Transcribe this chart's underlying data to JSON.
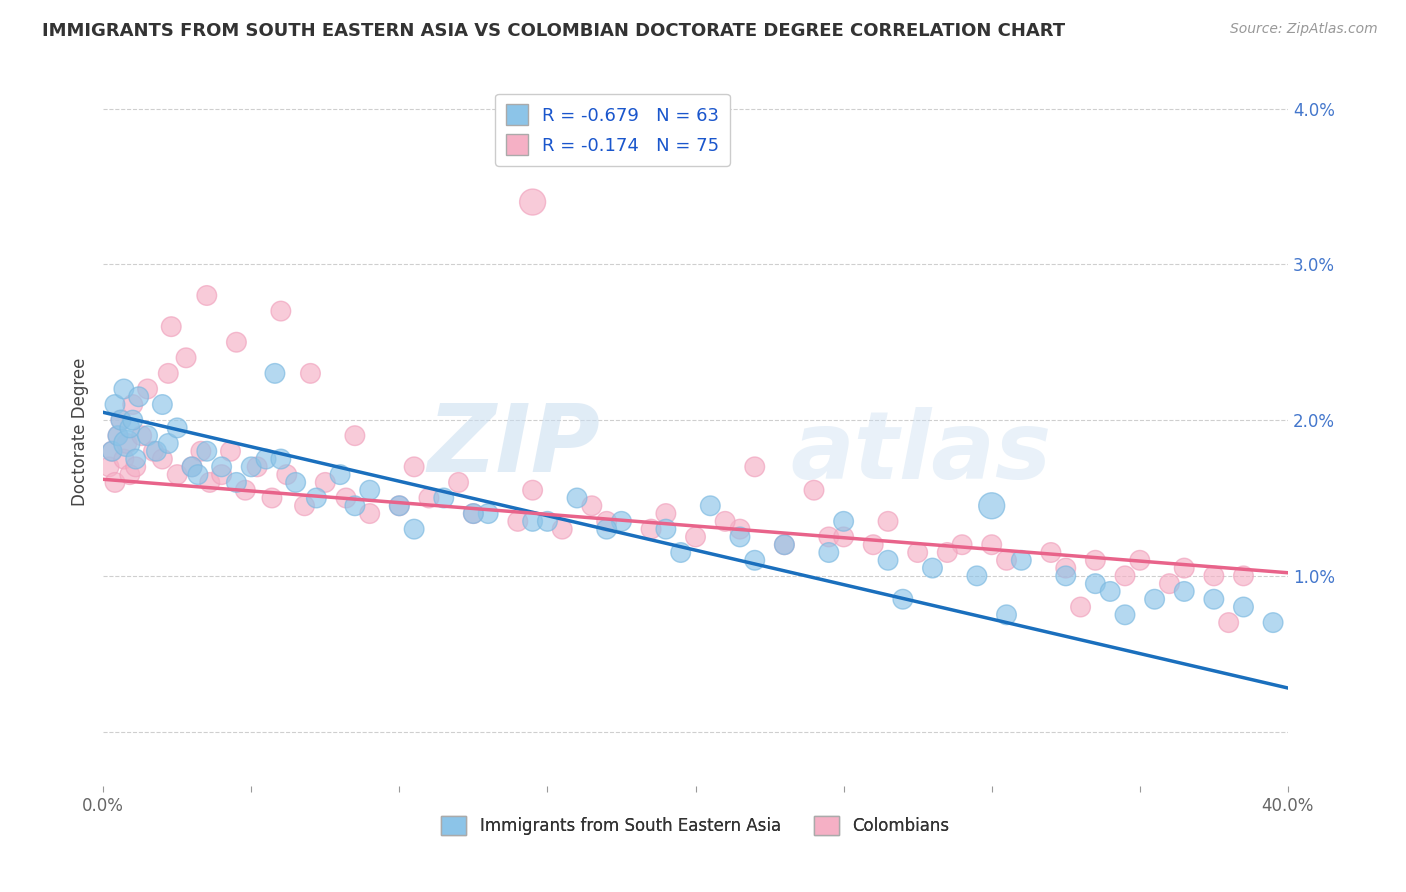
{
  "title": "IMMIGRANTS FROM SOUTH EASTERN ASIA VS COLOMBIAN DOCTORATE DEGREE CORRELATION CHART",
  "source": "Source: ZipAtlas.com",
  "ylabel": "Doctorate Degree",
  "xlim": [
    0.0,
    40.0
  ],
  "ylim": [
    -0.35,
    4.2
  ],
  "ytick_vals": [
    0.0,
    1.0,
    2.0,
    3.0,
    4.0
  ],
  "ytick_labels": [
    "",
    "1.0%",
    "2.0%",
    "3.0%",
    "4.0%"
  ],
  "xtick_vals": [
    0,
    5,
    10,
    15,
    20,
    25,
    30,
    35,
    40
  ],
  "xtick_labels": [
    "0.0%",
    "",
    "",
    "",
    "",
    "",
    "",
    "",
    "40.0%"
  ],
  "r_blue": -0.679,
  "n_blue": 63,
  "r_pink": -0.174,
  "n_pink": 75,
  "blue_color": "#8cc4e8",
  "pink_color": "#f5b0c5",
  "blue_edge_color": "#7ab8e0",
  "pink_edge_color": "#f0a0bc",
  "blue_line_color": "#1a6fbd",
  "pink_line_color": "#e8638a",
  "legend_blue_label": "R = -0.679   N = 63",
  "legend_pink_label": "R = -0.174   N = 75",
  "legend_bottom_blue": "Immigrants from South Eastern Asia",
  "legend_bottom_pink": "Colombians",
  "blue_trend_x": [
    0.0,
    40.0
  ],
  "blue_trend_y": [
    2.05,
    0.28
  ],
  "pink_trend_x": [
    0.0,
    40.0
  ],
  "pink_trend_y": [
    1.62,
    1.02
  ],
  "bg_color": "#ffffff",
  "grid_color": "#bbbbbb",
  "watermark_zip": "ZIP",
  "watermark_atlas": "atlas",
  "blue_x": [
    0.3,
    0.4,
    0.5,
    0.6,
    0.7,
    0.8,
    0.9,
    1.0,
    1.1,
    1.2,
    1.5,
    1.8,
    2.0,
    2.2,
    2.5,
    3.0,
    3.2,
    3.5,
    4.0,
    4.5,
    5.0,
    5.5,
    6.5,
    7.2,
    8.0,
    9.0,
    10.0,
    11.5,
    13.0,
    14.5,
    16.0,
    17.5,
    19.0,
    20.5,
    21.5,
    23.0,
    24.5,
    25.0,
    26.5,
    28.0,
    29.5,
    30.0,
    31.0,
    32.5,
    33.5,
    34.0,
    35.5,
    36.5,
    37.5,
    38.5,
    39.5,
    5.8,
    6.0,
    8.5,
    10.5,
    12.5,
    15.0,
    17.0,
    19.5,
    22.0,
    27.0,
    30.5,
    34.5
  ],
  "blue_y": [
    1.8,
    2.1,
    1.9,
    2.0,
    2.2,
    1.85,
    1.95,
    2.0,
    1.75,
    2.15,
    1.9,
    1.8,
    2.1,
    1.85,
    1.95,
    1.7,
    1.65,
    1.8,
    1.7,
    1.6,
    1.7,
    1.75,
    1.6,
    1.5,
    1.65,
    1.55,
    1.45,
    1.5,
    1.4,
    1.35,
    1.5,
    1.35,
    1.3,
    1.45,
    1.25,
    1.2,
    1.15,
    1.35,
    1.1,
    1.05,
    1.0,
    1.45,
    1.1,
    1.0,
    0.95,
    0.9,
    0.85,
    0.9,
    0.85,
    0.8,
    0.7,
    2.3,
    1.75,
    1.45,
    1.3,
    1.4,
    1.35,
    1.3,
    1.15,
    1.1,
    0.85,
    0.75,
    0.75
  ],
  "blue_s": [
    200,
    200,
    200,
    200,
    200,
    350,
    200,
    200,
    200,
    200,
    200,
    200,
    200,
    200,
    200,
    200,
    200,
    200,
    200,
    200,
    200,
    200,
    200,
    200,
    200,
    200,
    200,
    200,
    200,
    200,
    200,
    200,
    200,
    200,
    200,
    200,
    200,
    200,
    200,
    200,
    200,
    350,
    200,
    200,
    200,
    200,
    200,
    200,
    200,
    200,
    200,
    200,
    200,
    200,
    200,
    200,
    200,
    200,
    200,
    200,
    200,
    200,
    200
  ],
  "pink_x": [
    0.2,
    0.3,
    0.4,
    0.5,
    0.6,
    0.7,
    0.8,
    0.9,
    1.0,
    1.1,
    1.3,
    1.5,
    1.7,
    2.0,
    2.2,
    2.5,
    2.8,
    3.0,
    3.3,
    3.6,
    4.0,
    4.3,
    4.8,
    5.2,
    5.7,
    6.2,
    6.8,
    7.5,
    8.2,
    9.0,
    10.0,
    11.0,
    12.5,
    14.0,
    15.5,
    17.0,
    18.5,
    20.0,
    21.5,
    23.0,
    24.5,
    26.0,
    27.5,
    29.0,
    30.5,
    32.0,
    33.5,
    35.0,
    36.5,
    37.5,
    38.5,
    2.3,
    3.5,
    4.5,
    6.0,
    7.0,
    8.5,
    10.5,
    12.0,
    14.5,
    16.5,
    19.0,
    21.0,
    25.0,
    26.5,
    28.5,
    30.0,
    32.5,
    34.5,
    36.0,
    14.5,
    22.0,
    24.0,
    33.0,
    38.0
  ],
  "pink_y": [
    1.7,
    1.8,
    1.6,
    1.9,
    2.0,
    1.75,
    1.85,
    1.65,
    2.1,
    1.7,
    1.9,
    2.2,
    1.8,
    1.75,
    2.3,
    1.65,
    2.4,
    1.7,
    1.8,
    1.6,
    1.65,
    1.8,
    1.55,
    1.7,
    1.5,
    1.65,
    1.45,
    1.6,
    1.5,
    1.4,
    1.45,
    1.5,
    1.4,
    1.35,
    1.3,
    1.35,
    1.3,
    1.25,
    1.3,
    1.2,
    1.25,
    1.2,
    1.15,
    1.2,
    1.1,
    1.15,
    1.1,
    1.1,
    1.05,
    1.0,
    1.0,
    2.6,
    2.8,
    2.5,
    2.7,
    2.3,
    1.9,
    1.7,
    1.6,
    1.55,
    1.45,
    1.4,
    1.35,
    1.25,
    1.35,
    1.15,
    1.2,
    1.05,
    1.0,
    0.95,
    3.4,
    1.7,
    1.55,
    0.8,
    0.7
  ],
  "pink_s": [
    200,
    200,
    200,
    200,
    200,
    200,
    200,
    200,
    200,
    200,
    200,
    200,
    200,
    200,
    200,
    200,
    200,
    200,
    200,
    200,
    200,
    200,
    200,
    200,
    200,
    200,
    200,
    200,
    200,
    200,
    200,
    200,
    200,
    200,
    200,
    200,
    200,
    200,
    200,
    200,
    200,
    200,
    200,
    200,
    200,
    200,
    200,
    200,
    200,
    200,
    200,
    200,
    200,
    200,
    200,
    200,
    200,
    200,
    200,
    200,
    200,
    200,
    200,
    200,
    200,
    200,
    200,
    200,
    200,
    200,
    350,
    200,
    200,
    200,
    200
  ]
}
